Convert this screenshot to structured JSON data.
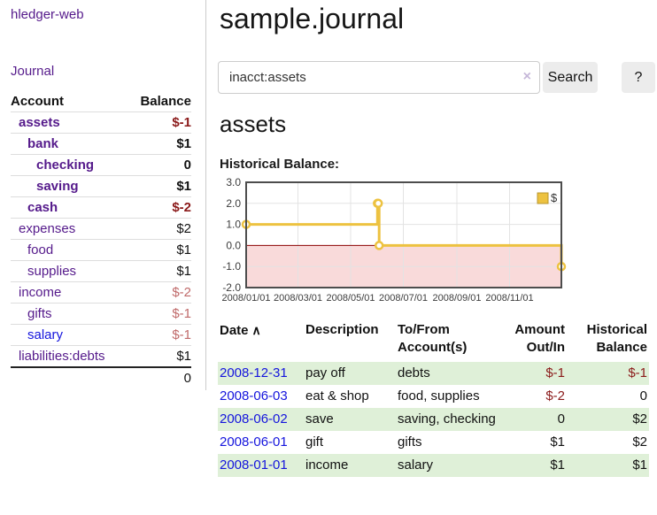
{
  "colors": {
    "purple": "#551a8b",
    "linkblue": "#1414dd",
    "negative": "#8b1a1a",
    "rose": "#c06a6a",
    "stripe": "#dff0d8",
    "button_bg": "#ececec",
    "divider": "#cccccc",
    "grid_line": "#e3e3e3",
    "chart_border": "#4d4d4d",
    "zero_line": "#8b0000",
    "chart_line": "#edc240",
    "chart_negative_bg": "#f9dada"
  },
  "app": {
    "brand": "hledger-web",
    "journal_link": "Journal"
  },
  "sidebar": {
    "headers": [
      "Account",
      "Balance"
    ],
    "accounts": [
      {
        "name": "assets",
        "depth": 0,
        "name_tone": "strong",
        "balance": "$-1",
        "balance_tone": "neg strong"
      },
      {
        "name": "bank",
        "depth": 1,
        "name_tone": "strong",
        "balance": "$1",
        "balance_tone": "strong"
      },
      {
        "name": "checking",
        "depth": 2,
        "name_tone": "strong",
        "balance": "0",
        "balance_tone": "strong"
      },
      {
        "name": "saving",
        "depth": 2,
        "name_tone": "strong",
        "balance": "$1",
        "balance_tone": "strong"
      },
      {
        "name": "cash",
        "depth": 1,
        "name_tone": "strong",
        "balance": "$-2",
        "balance_tone": "neg strong"
      },
      {
        "name": "expenses",
        "depth": 0,
        "name_tone": "",
        "balance": "$2",
        "balance_tone": ""
      },
      {
        "name": "food",
        "depth": 1,
        "name_tone": "",
        "balance": "$1",
        "balance_tone": ""
      },
      {
        "name": "supplies",
        "depth": 1,
        "name_tone": "",
        "balance": "$1",
        "balance_tone": ""
      },
      {
        "name": "income",
        "depth": 0,
        "name_tone": "",
        "balance": "$-2",
        "balance_tone": "rose"
      },
      {
        "name": "gifts",
        "depth": 1,
        "name_tone": "",
        "balance": "$-1",
        "balance_tone": "rose"
      },
      {
        "name": "salary",
        "depth": 1,
        "name_tone": "blue",
        "balance": "$-1",
        "balance_tone": "rose"
      },
      {
        "name": "liabilities:debts",
        "depth": 0,
        "name_tone": "",
        "balance": "$1",
        "balance_tone": ""
      }
    ],
    "total": "0"
  },
  "main": {
    "title": "sample.journal",
    "search": {
      "value": "inacct:assets",
      "clear_icon": "×",
      "button_label": "Search",
      "help_label": "?"
    },
    "account_heading": "assets",
    "chart_label": "Historical Balance:",
    "register": {
      "headers": {
        "date": "Date",
        "description": "Description",
        "accounts": "To/From Account(s)",
        "amount": "Amount Out/In",
        "balance": "Historical Balance"
      },
      "sort_icon": "∧",
      "rows": [
        {
          "date": "2008-12-31",
          "description": "pay off",
          "accounts": "debts",
          "amount": "$-1",
          "amount_tone": "neg",
          "balance": "$-1",
          "balance_tone": "neg"
        },
        {
          "date": "2008-06-03",
          "description": "eat & shop",
          "accounts": "food, supplies",
          "amount": "$-2",
          "amount_tone": "neg",
          "balance": "0",
          "balance_tone": ""
        },
        {
          "date": "2008-06-02",
          "description": "save",
          "accounts": "saving, checking",
          "amount": "0",
          "amount_tone": "",
          "balance": "$2",
          "balance_tone": ""
        },
        {
          "date": "2008-06-01",
          "description": "gift",
          "accounts": "gifts",
          "amount": "$1",
          "amount_tone": "",
          "balance": "$2",
          "balance_tone": ""
        },
        {
          "date": "2008-01-01",
          "description": "income",
          "accounts": "salary",
          "amount": "$1",
          "amount_tone": "",
          "balance": "$1",
          "balance_tone": ""
        }
      ]
    }
  },
  "chart_data": {
    "type": "line",
    "title": "Historical Balance",
    "xlabel": "",
    "ylabel": "",
    "series": [
      {
        "name": "$",
        "color": "#edc240",
        "step": true,
        "points": [
          [
            "2008-01-01",
            1
          ],
          [
            "2008-06-01",
            2
          ],
          [
            "2008-06-02",
            2
          ],
          [
            "2008-06-03",
            0
          ],
          [
            "2008-12-31",
            -1
          ]
        ]
      }
    ],
    "x_range": [
      "2008-01-01",
      "2008-12-31"
    ],
    "ylim": [
      -2,
      3
    ],
    "y_ticks": [
      3,
      2,
      1,
      0,
      -1,
      -2
    ],
    "x_ticks": [
      {
        "d": "2008-01-01",
        "label": "2008/01/01"
      },
      {
        "d": "2008-03-01",
        "label": "2008/03/01"
      },
      {
        "d": "2008-05-01",
        "label": "2008/05/01"
      },
      {
        "d": "2008-07-01",
        "label": "2008/07/01"
      },
      {
        "d": "2008-09-01",
        "label": "2008/09/01"
      },
      {
        "d": "2008-11-01",
        "label": "2008/11/01"
      }
    ],
    "legend_position": "top-right",
    "grid": true,
    "negative_region_shaded": true
  }
}
